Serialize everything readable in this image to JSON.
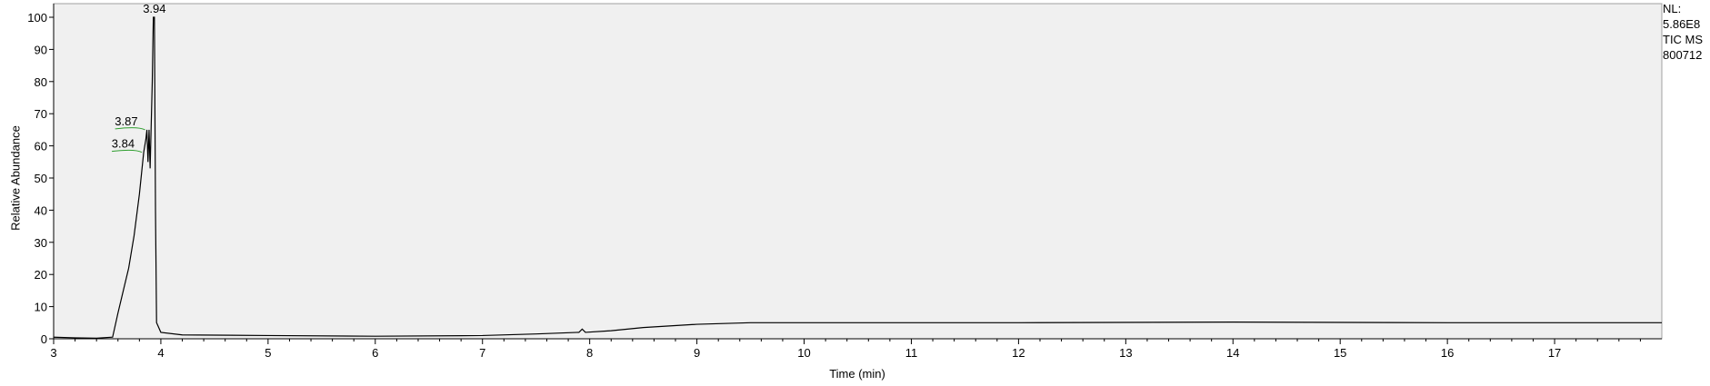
{
  "chart_data": {
    "type": "line",
    "xlabel": "Time (min)",
    "ylabel": "Relative Abundance",
    "info": [
      "NL:",
      "5.86E8",
      "TIC  MS",
      "800712"
    ],
    "x": [
      3.0,
      3.2,
      3.4,
      3.55,
      3.6,
      3.65,
      3.7,
      3.75,
      3.8,
      3.84,
      3.86,
      3.87,
      3.88,
      3.89,
      3.9,
      3.92,
      3.93,
      3.94,
      3.95,
      3.96,
      4.0,
      4.2,
      5.0,
      6.0,
      7.0,
      7.5,
      7.9,
      7.93,
      7.96,
      8.2,
      8.5,
      9.0,
      9.5,
      10.0,
      12.0,
      14.0,
      16.0,
      18.0
    ],
    "series": [
      {
        "color": "#000000",
        "values": [
          0.5,
          0.3,
          0.2,
          0.5,
          8,
          15,
          22,
          32,
          45,
          58,
          62,
          65,
          55,
          65,
          53,
          80,
          100,
          100,
          40,
          5,
          2,
          1.2,
          1,
          0.8,
          1,
          1.5,
          2,
          3,
          2,
          2.5,
          3.5,
          4.5,
          5,
          5,
          5,
          5.2,
          5,
          5
        ]
      }
    ],
    "annotations": [
      {
        "x": 3.94,
        "y": 100
      },
      {
        "x": 3.87,
        "y": 65
      },
      {
        "x": 3.84,
        "y": 58
      }
    ],
    "xlim": [
      3,
      18
    ],
    "ylim": [
      0,
      100
    ],
    "xticks": [
      3,
      4,
      5,
      6,
      7,
      8,
      9,
      10,
      11,
      12,
      13,
      14,
      15,
      16,
      17
    ],
    "yticks": [
      0,
      10,
      20,
      30,
      40,
      50,
      60,
      70,
      80,
      90,
      100
    ]
  }
}
